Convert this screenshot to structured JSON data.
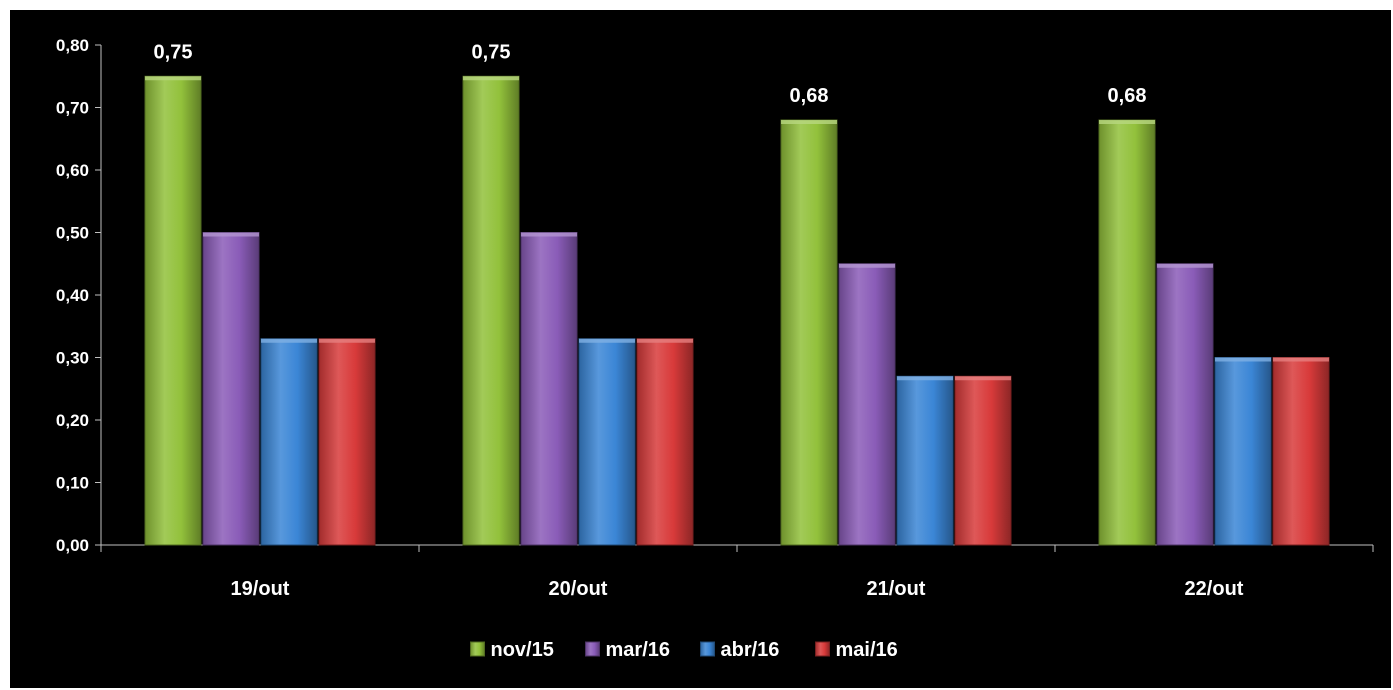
{
  "chart_data": {
    "type": "bar",
    "title": "",
    "xlabel": "",
    "ylabel": "",
    "categories": [
      "19/out",
      "20/out",
      "21/out",
      "22/out"
    ],
    "series": [
      {
        "name": "nov/15",
        "values": [
          0.75,
          0.75,
          0.68,
          0.68
        ],
        "color": "#92c13b",
        "data_labels": [
          "0,75",
          "0,75",
          "0,68",
          "0,68"
        ]
      },
      {
        "name": "mar/16",
        "values": [
          0.5,
          0.5,
          0.45,
          0.45
        ],
        "color": "#8a5cb8"
      },
      {
        "name": "abr/16",
        "values": [
          0.33,
          0.33,
          0.27,
          0.3
        ],
        "color": "#3b86d6"
      },
      {
        "name": "mai/16",
        "values": [
          0.33,
          0.33,
          0.27,
          0.3
        ],
        "color": "#d83a3a"
      }
    ],
    "ylim": [
      0,
      0.8
    ],
    "y_ticks": [
      "0,00",
      "0,10",
      "0,20",
      "0,30",
      "0,40",
      "0,50",
      "0,60",
      "0,70",
      "0,80"
    ],
    "grid": false,
    "legend_position": "bottom",
    "background": "#000000"
  }
}
